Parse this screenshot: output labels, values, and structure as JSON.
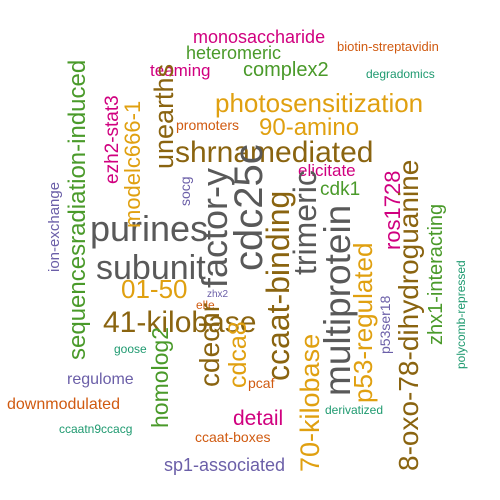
{
  "words": [
    {
      "text": "monosaccharide",
      "color": "#d0007f",
      "rotated": false
    },
    {
      "text": "heteromeric",
      "color": "#4a9a2a",
      "rotated": false
    },
    {
      "text": "biotin-streptavidin",
      "color": "#d05a10",
      "rotated": false
    },
    {
      "text": "teaming",
      "color": "#d0007f",
      "rotated": false
    },
    {
      "text": "complex2",
      "color": "#4a9a2a",
      "rotated": false
    },
    {
      "text": "degradomics",
      "color": "#1f9a70",
      "rotated": false
    },
    {
      "text": "photosensitization",
      "color": "#e0a010",
      "rotated": false
    },
    {
      "text": "promoters",
      "color": "#d05a10",
      "rotated": false
    },
    {
      "text": "90-amino",
      "color": "#e0a010",
      "rotated": false
    },
    {
      "text": "shrnamediated",
      "color": "#8a6410",
      "rotated": false
    },
    {
      "text": "elicitate",
      "color": "#d0007f",
      "rotated": false
    },
    {
      "text": "cdk1",
      "color": "#4a9a2a",
      "rotated": false
    },
    {
      "text": "purines",
      "color": "#595959",
      "rotated": false
    },
    {
      "text": "subunit",
      "color": "#595959",
      "rotated": false
    },
    {
      "text": "01-50",
      "color": "#e0a010",
      "rotated": false
    },
    {
      "text": "zhx2",
      "color": "#6b5fa8",
      "rotated": false
    },
    {
      "text": "elle",
      "color": "#d05a10",
      "rotated": false
    },
    {
      "text": "41-kilobase",
      "color": "#8a6410",
      "rotated": false
    },
    {
      "text": "goose",
      "color": "#1f9a70",
      "rotated": false
    },
    {
      "text": "regulome",
      "color": "#6b5fa8",
      "rotated": false
    },
    {
      "text": "downmodulated",
      "color": "#d05a10",
      "rotated": false
    },
    {
      "text": "pcaf",
      "color": "#d05a10",
      "rotated": false
    },
    {
      "text": "derivatized",
      "color": "#1f9a70",
      "rotated": false
    },
    {
      "text": "detail",
      "color": "#d0007f",
      "rotated": false
    },
    {
      "text": "ccaatn9ccacg",
      "color": "#1f9a70",
      "rotated": false
    },
    {
      "text": "ccaat-boxes",
      "color": "#d05a10",
      "rotated": false
    },
    {
      "text": "sp1-associated",
      "color": "#6b5fa8",
      "rotated": false
    },
    {
      "text": "ion-exchange",
      "color": "#6b5fa8",
      "rotated": true
    },
    {
      "text": "sequencesradiation-induced",
      "color": "#4a9a2a",
      "rotated": true
    },
    {
      "text": "ezh2-stat3",
      "color": "#d0007f",
      "rotated": true
    },
    {
      "text": "modelc666-1",
      "color": "#e0a010",
      "rotated": true
    },
    {
      "text": "unearths",
      "color": "#8a6410",
      "rotated": true
    },
    {
      "text": "socg",
      "color": "#6b5fa8",
      "rotated": true
    },
    {
      "text": "factor-y",
      "color": "#595959",
      "rotated": true
    },
    {
      "text": "cdc25c",
      "color": "#595959",
      "rotated": true
    },
    {
      "text": "ccaat-binding",
      "color": "#8a6410",
      "rotated": true
    },
    {
      "text": "trimeric",
      "color": "#595959",
      "rotated": true
    },
    {
      "text": "multiprotein",
      "color": "#595959",
      "rotated": true
    },
    {
      "text": "cdechr",
      "color": "#8a6410",
      "rotated": true
    },
    {
      "text": "cdca8",
      "color": "#e0a010",
      "rotated": true
    },
    {
      "text": "homolog2",
      "color": "#4a9a2a",
      "rotated": true
    },
    {
      "text": "70-kilobase",
      "color": "#e0a010",
      "rotated": true
    },
    {
      "text": "p53-regulated",
      "color": "#e0a010",
      "rotated": true
    },
    {
      "text": "ros1728",
      "color": "#d0007f",
      "rotated": true
    },
    {
      "text": "p53ser18",
      "color": "#6b5fa8",
      "rotated": true
    },
    {
      "text": "8-oxo-78-dihydroguanine",
      "color": "#8a6410",
      "rotated": true
    },
    {
      "text": "zhx1-interacting",
      "color": "#4a9a2a",
      "rotated": true
    },
    {
      "text": "polycomb-repressed",
      "color": "#1f9a70",
      "rotated": true
    }
  ]
}
